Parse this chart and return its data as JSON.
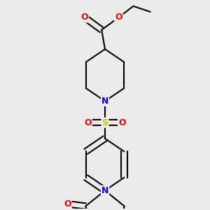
{
  "background_color": "#ebebeb",
  "bond_color": "#000000",
  "bond_width": 1.5,
  "atom_colors": {
    "O": "#ff0000",
    "N": "#0000ff",
    "S": "#cccc00",
    "C": "#000000"
  },
  "figsize": [
    3.0,
    3.0
  ],
  "dpi": 100,
  "xlim": [
    0.15,
    0.85
  ],
  "ylim": [
    0.05,
    0.97
  ]
}
